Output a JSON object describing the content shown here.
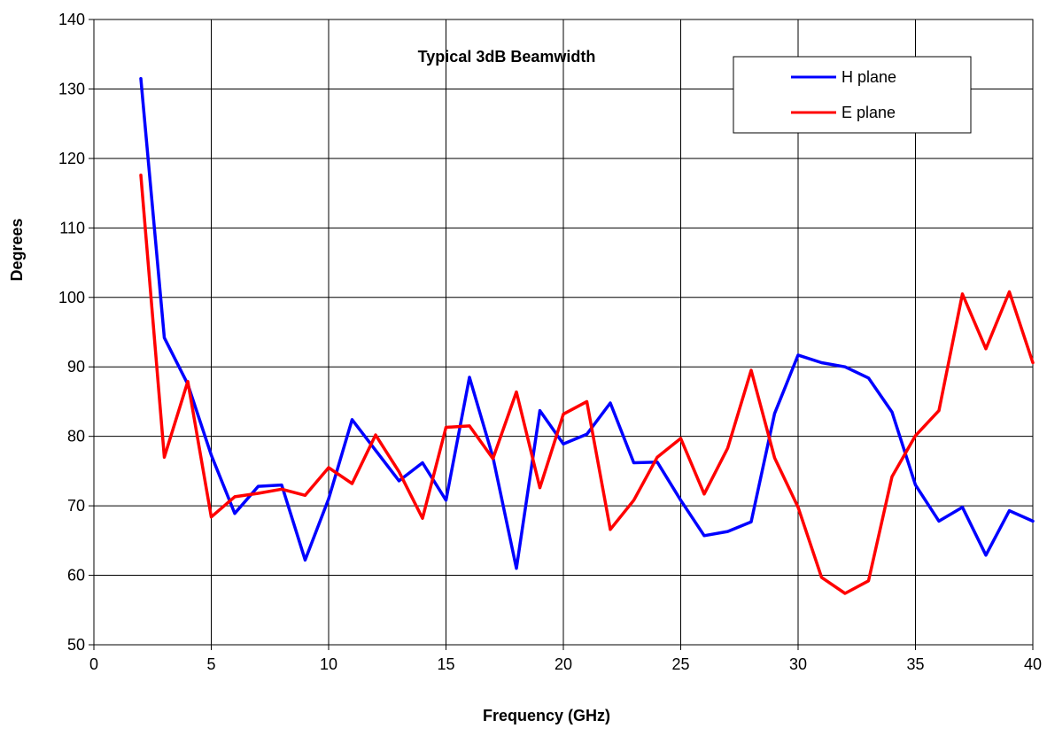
{
  "chart_data": {
    "type": "line",
    "title": "Typical 3dB Beamwidth",
    "xlabel": "Frequency (GHz)",
    "ylabel": "Degrees",
    "xlim": [
      0,
      40
    ],
    "ylim": [
      50,
      140
    ],
    "xticks": [
      0,
      5,
      10,
      15,
      20,
      25,
      30,
      35,
      40
    ],
    "yticks": [
      50,
      60,
      70,
      80,
      90,
      100,
      110,
      120,
      130,
      140
    ],
    "grid": true,
    "legend_position": "top-right",
    "x": [
      2,
      3,
      4,
      5,
      6,
      7,
      8,
      9,
      10,
      11,
      12,
      13,
      14,
      15,
      16,
      17,
      18,
      19,
      20,
      21,
      22,
      23,
      24,
      25,
      26,
      27,
      28,
      29,
      30,
      31,
      32,
      33,
      34,
      35,
      36,
      37,
      38,
      39,
      40
    ],
    "series": [
      {
        "name": "H plane",
        "color": "#0000ff",
        "values": [
          131.5,
          94.2,
          87.5,
          77.3,
          68.9,
          72.8,
          73.0,
          62.2,
          71.0,
          82.4,
          78.0,
          73.6,
          76.2,
          70.8,
          88.5,
          77.0,
          61.0,
          83.7,
          78.9,
          80.3,
          84.8,
          76.2,
          76.3,
          70.8,
          65.7,
          66.3,
          67.7,
          83.3,
          91.7,
          90.6,
          90.0,
          88.4,
          83.5,
          73.0,
          67.8,
          69.8,
          62.9,
          69.3,
          67.8
        ]
      },
      {
        "name": "E plane",
        "color": "#ff0000",
        "values": [
          117.6,
          77.0,
          87.9,
          68.4,
          71.3,
          71.8,
          72.4,
          71.5,
          75.5,
          73.2,
          80.2,
          74.9,
          68.2,
          81.3,
          81.5,
          76.8,
          86.4,
          72.6,
          83.2,
          85.0,
          66.6,
          70.8,
          77.0,
          79.7,
          71.7,
          78.3,
          89.5,
          76.9,
          69.8,
          59.7,
          57.4,
          59.2,
          74.2,
          80.1,
          83.7,
          100.5,
          92.6,
          100.8,
          90.6
        ]
      }
    ]
  }
}
